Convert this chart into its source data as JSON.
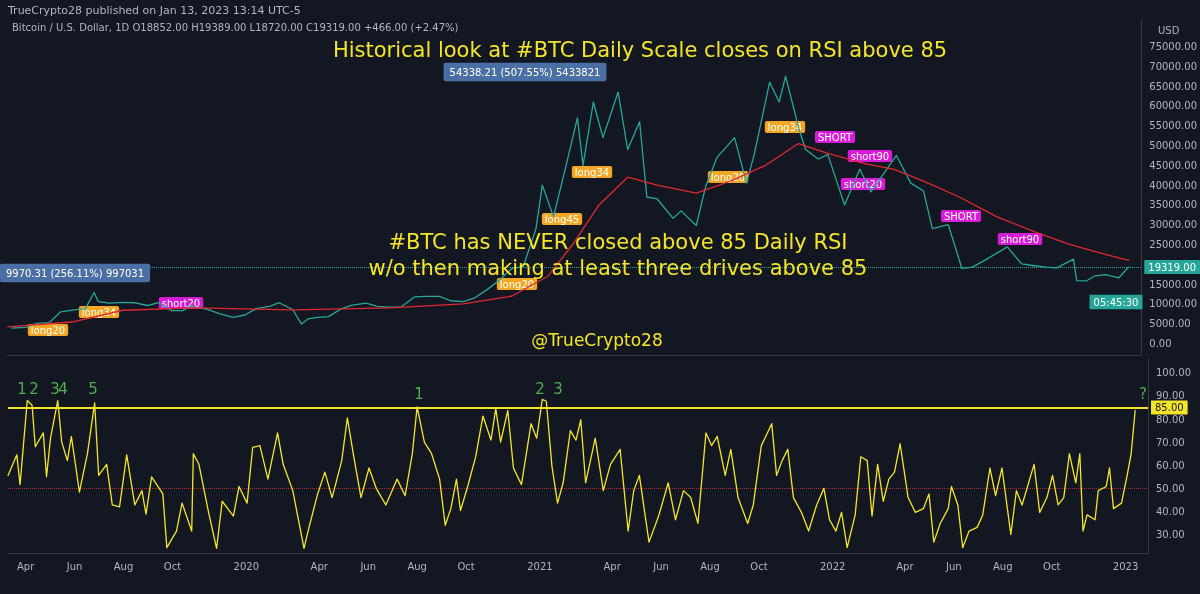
{
  "chart_data": [
    {
      "type": "line",
      "title": "Historical look at #BTC Daily Scale closes on RSI above 85",
      "subtitle": "Bitcoin / U.S. Dollar, 1D O18852.00 H19389.00 L18720.00 C19319.00 +466.00 (+2.47%)",
      "ylabel": "USD",
      "xlim": [
        "2019-03-10",
        "2023-01-29"
      ],
      "ylim": [
        -2900,
        81700
      ],
      "yticks": [
        {
          "value": 0,
          "label": "0.00"
        },
        {
          "value": 5000,
          "label": "5000.00"
        },
        {
          "value": 10000,
          "label": "10000.00"
        },
        {
          "value": 15000,
          "label": "15000.00"
        },
        {
          "value": 25000,
          "label": "25000.00"
        },
        {
          "value": 30000,
          "label": "30000.00"
        },
        {
          "value": 35000,
          "label": "35000.00"
        },
        {
          "value": 40000,
          "label": "40000.00"
        },
        {
          "value": 45000,
          "label": "45000.00"
        },
        {
          "value": 50000,
          "label": "50000.00"
        },
        {
          "value": 55000,
          "label": "55000.00"
        },
        {
          "value": 60000,
          "label": "60000.00"
        },
        {
          "value": 65000,
          "label": "65000.00"
        },
        {
          "value": 70000,
          "label": "70000.00"
        },
        {
          "value": 75000,
          "label": "75000.00"
        }
      ],
      "tick_labels": "y",
      "series": [
        {
          "color": "#26a69a",
          "x": [
            "2019-03-15",
            "2019-04-01",
            "2019-04-15",
            "2019-05-01",
            "2019-05-15",
            "2019-06-01",
            "2019-06-15",
            "2019-06-26",
            "2019-07-01",
            "2019-07-15",
            "2019-08-01",
            "2019-08-15",
            "2019-09-01",
            "2019-09-15",
            "2019-10-01",
            "2019-10-15",
            "2019-10-26",
            "2019-11-01",
            "2019-11-15",
            "2019-12-01",
            "2019-12-17",
            "2020-01-01",
            "2020-01-15",
            "2020-02-01",
            "2020-02-13",
            "2020-03-01",
            "2020-03-12",
            "2020-03-20",
            "2020-04-01",
            "2020-04-15",
            "2020-05-01",
            "2020-05-15",
            "2020-06-01",
            "2020-06-15",
            "2020-07-01",
            "2020-07-15",
            "2020-08-01",
            "2020-08-15",
            "2020-09-01",
            "2020-09-15",
            "2020-10-01",
            "2020-10-15",
            "2020-11-01",
            "2020-11-15",
            "2020-12-01",
            "2020-12-15",
            "2020-12-31",
            "2021-01-08",
            "2021-01-22",
            "2021-02-08",
            "2021-02-21",
            "2021-02-28",
            "2021-03-13",
            "2021-03-25",
            "2021-04-13",
            "2021-04-25",
            "2021-05-10",
            "2021-05-19",
            "2021-06-01",
            "2021-06-21",
            "2021-07-01",
            "2021-07-20",
            "2021-08-01",
            "2021-08-15",
            "2021-09-06",
            "2021-09-21",
            "2021-10-01",
            "2021-10-20",
            "2021-11-01",
            "2021-11-09",
            "2021-11-26",
            "2021-12-04",
            "2021-12-20",
            "2022-01-01",
            "2022-01-22",
            "2022-02-10",
            "2022-02-24",
            "2022-03-28",
            "2022-04-15",
            "2022-05-01",
            "2022-05-12",
            "2022-06-01",
            "2022-06-18",
            "2022-07-01",
            "2022-07-15",
            "2022-08-14",
            "2022-09-01",
            "2022-09-15",
            "2022-10-01",
            "2022-10-15",
            "2022-11-05",
            "2022-11-09",
            "2022-11-21",
            "2022-12-01",
            "2022-12-15",
            "2023-01-01",
            "2023-01-13"
          ],
          "values": [
            3900,
            4100,
            5100,
            5300,
            8000,
            8500,
            8800,
            12900,
            10600,
            10200,
            10400,
            10300,
            9600,
            10300,
            8300,
            8300,
            9500,
            9200,
            8600,
            7500,
            6600,
            7200,
            8800,
            9400,
            10300,
            8600,
            4900,
            6200,
            6600,
            6800,
            8800,
            9700,
            10200,
            9400,
            9200,
            9200,
            11800,
            11900,
            11900,
            10800,
            10600,
            11500,
            13800,
            16000,
            19000,
            19400,
            29000,
            40000,
            32000,
            46000,
            57000,
            45000,
            61000,
            52000,
            63500,
            49000,
            56000,
            37000,
            36500,
            31600,
            33500,
            29800,
            39800,
            47000,
            52000,
            40500,
            48000,
            66000,
            61000,
            67500,
            54000,
            49000,
            46600,
            47700,
            35000,
            44000,
            38300,
            47500,
            40500,
            38500,
            29000,
            30000,
            19000,
            19300,
            20800,
            24400,
            20100,
            19700,
            19300,
            19100,
            21300,
            15900,
            15800,
            17000,
            17400,
            16600,
            19319
          ]
        },
        {
          "color": "#e0282e",
          "x": [
            "2019-03-10",
            "2019-06-01",
            "2019-08-01",
            "2019-11-01",
            "2020-03-01",
            "2020-07-01",
            "2020-10-01",
            "2020-12-01",
            "2021-01-15",
            "2021-02-15",
            "2021-03-20",
            "2021-04-25",
            "2021-06-01",
            "2021-07-20",
            "2021-09-01",
            "2021-10-15",
            "2021-11-25",
            "2022-01-01",
            "2022-02-15",
            "2022-03-25",
            "2022-05-01",
            "2022-06-15",
            "2022-08-01",
            "2022-09-20",
            "2022-11-01",
            "2022-12-15",
            "2023-01-13"
          ],
          "values": [
            4200,
            5500,
            8400,
            9000,
            8500,
            9000,
            10000,
            12000,
            17000,
            25000,
            35000,
            42000,
            40000,
            38000,
            41000,
            45000,
            50500,
            48000,
            45500,
            44000,
            41000,
            37000,
            32000,
            28000,
            25000,
            22500,
            21000
          ]
        }
      ],
      "ref_lines": [
        {
          "axis": "y",
          "value": 19319,
          "label": "19319.00",
          "color": "#26a69a",
          "line_style": "dotted"
        }
      ],
      "annotations": [
        "TrueCrypto28 published on Jan 13, 2023 13:14 UTC-5",
        "54338.21 (507.55%) 5433821",
        "9970.31 (256.11%) 997031",
        "#BTC has NEVER closed above 85 Daily RSI\nw/o then making at least three drives above 85",
        "@TrueCrypto28",
        "05:45:30",
        "long20",
        "long34",
        "short20",
        "long20",
        "long45",
        "long34",
        "long20",
        "long34",
        "SHORT",
        "short90",
        "short20",
        "SHORT",
        "short90"
      ]
    },
    {
      "type": "line",
      "xlim": [
        "2019-03-10",
        "2023-01-29"
      ],
      "ylim": [
        22,
        106
      ],
      "xticks": [
        {
          "value": "2019-04-01",
          "label": "Apr"
        },
        {
          "value": "2019-06-01",
          "label": "Jun"
        },
        {
          "value": "2019-08-01",
          "label": "Aug"
        },
        {
          "value": "2019-10-01",
          "label": "Oct"
        },
        {
          "value": "2020-01-01",
          "label": "2020"
        },
        {
          "value": "2020-04-01",
          "label": "Apr"
        },
        {
          "value": "2020-06-01",
          "label": "Jun"
        },
        {
          "value": "2020-08-01",
          "label": "Aug"
        },
        {
          "value": "2020-10-01",
          "label": "Oct"
        },
        {
          "value": "2021-01-01",
          "label": "2021"
        },
        {
          "value": "2021-04-01",
          "label": "Apr"
        },
        {
          "value": "2021-06-01",
          "label": "Jun"
        },
        {
          "value": "2021-08-01",
          "label": "Aug"
        },
        {
          "value": "2021-10-01",
          "label": "Oct"
        },
        {
          "value": "2022-01-01",
          "label": "2022"
        },
        {
          "value": "2022-04-01",
          "label": "Apr"
        },
        {
          "value": "2022-06-01",
          "label": "Jun"
        },
        {
          "value": "2022-08-01",
          "label": "Aug"
        },
        {
          "value": "2022-10-01",
          "label": "Oct"
        },
        {
          "value": "2023-01-01",
          "label": "2023"
        }
      ],
      "yticks": [
        {
          "value": 30,
          "label": "30.00"
        },
        {
          "value": 40,
          "label": "40.00"
        },
        {
          "value": 50,
          "label": "50.00"
        },
        {
          "value": 60,
          "label": "60.00"
        },
        {
          "value": 70,
          "label": "70.00"
        },
        {
          "value": 80,
          "label": "80.00"
        },
        {
          "value": 90,
          "label": "90.00"
        },
        {
          "value": 100,
          "label": "100.00"
        }
      ],
      "series": [
        {
          "color": "#f5e52a",
          "x": [
            "2019-03-10",
            "2019-03-21",
            "2019-03-25",
            "2019-04-03",
            "2019-04-09",
            "2019-04-13",
            "2019-04-23",
            "2019-04-27",
            "2019-05-02",
            "2019-05-11",
            "2019-05-16",
            "2019-05-23",
            "2019-05-28",
            "2019-06-07",
            "2019-06-17",
            "2019-06-26",
            "2019-07-01",
            "2019-07-11",
            "2019-07-18",
            "2019-07-27",
            "2019-08-05",
            "2019-08-15",
            "2019-08-24",
            "2019-08-29",
            "2019-09-05",
            "2019-09-19",
            "2019-09-24",
            "2019-10-06",
            "2019-10-13",
            "2019-10-25",
            "2019-10-27",
            "2019-11-03",
            "2019-11-15",
            "2019-11-25",
            "2019-12-02",
            "2019-12-16",
            "2019-12-23",
            "2020-01-02",
            "2020-01-09",
            "2020-01-18",
            "2020-01-28",
            "2020-02-09",
            "2020-02-16",
            "2020-02-28",
            "2020-03-06",
            "2020-03-13",
            "2020-03-18",
            "2020-03-30",
            "2020-04-08",
            "2020-04-17",
            "2020-04-29",
            "2020-05-06",
            "2020-05-14",
            "2020-05-23",
            "2020-06-02",
            "2020-06-11",
            "2020-06-23",
            "2020-07-07",
            "2020-07-17",
            "2020-07-26",
            "2020-08-01",
            "2020-08-10",
            "2020-08-19",
            "2020-08-29",
            "2020-09-05",
            "2020-09-12",
            "2020-09-19",
            "2020-09-24",
            "2020-10-03",
            "2020-10-13",
            "2020-10-22",
            "2020-11-01",
            "2020-11-07",
            "2020-11-13",
            "2020-11-22",
            "2020-11-29",
            "2020-12-09",
            "2020-12-21",
            "2020-12-28",
            "2021-01-04",
            "2021-01-09",
            "2021-01-16",
            "2021-01-23",
            "2021-01-30",
            "2021-02-08",
            "2021-02-15",
            "2021-02-21",
            "2021-02-27",
            "2021-03-09",
            "2021-03-11",
            "2021-03-21",
            "2021-03-30",
            "2021-04-11",
            "2021-04-21",
            "2021-04-28",
            "2021-05-05",
            "2021-05-17",
            "2021-05-29",
            "2021-06-10",
            "2021-06-19",
            "2021-06-29",
            "2021-07-08",
            "2021-07-17",
            "2021-07-27",
            "2021-08-03",
            "2021-08-10",
            "2021-08-20",
            "2021-08-27",
            "2021-09-05",
            "2021-09-17",
            "2021-09-24",
            "2021-10-04",
            "2021-10-17",
            "2021-10-23",
            "2021-10-30",
            "2021-11-06",
            "2021-11-13",
            "2021-11-23",
            "2021-12-02",
            "2021-12-12",
            "2021-12-21",
            "2021-12-28",
            "2022-01-05",
            "2022-01-12",
            "2022-01-19",
            "2022-01-29",
            "2022-02-05",
            "2022-02-13",
            "2022-02-19",
            "2022-02-26",
            "2022-03-05",
            "2022-03-12",
            "2022-03-19",
            "2022-03-26",
            "2022-04-05",
            "2022-04-14",
            "2022-04-24",
            "2022-05-01",
            "2022-05-07",
            "2022-05-15",
            "2022-05-25",
            "2022-05-29",
            "2022-06-06",
            "2022-06-12",
            "2022-06-20",
            "2022-06-30",
            "2022-07-07",
            "2022-07-16",
            "2022-07-23",
            "2022-07-31",
            "2022-08-11",
            "2022-08-18",
            "2022-08-25",
            "2022-09-09",
            "2022-09-16",
            "2022-09-25",
            "2022-10-02",
            "2022-10-09",
            "2022-10-16",
            "2022-10-23",
            "2022-10-31",
            "2022-11-05",
            "2022-11-09",
            "2022-11-14",
            "2022-11-24",
            "2022-11-28",
            "2022-12-08",
            "2022-12-12",
            "2022-12-17",
            "2022-12-27",
            "2023-01-03",
            "2023-01-08",
            "2023-01-13"
          ],
          "values": [
            55.6,
            64.5,
            51.6,
            88,
            86,
            68,
            74,
            55,
            71.7,
            88,
            70,
            62,
            72.5,
            48.4,
            65,
            87,
            55.6,
            60.4,
            42.8,
            42,
            64.5,
            42.8,
            49,
            38.8,
            55,
            47.6,
            24.3,
            31.5,
            43.6,
            31.5,
            65,
            60.4,
            39.6,
            24,
            44.4,
            38,
            50.8,
            43.6,
            67.7,
            68.5,
            54,
            74,
            60.4,
            49,
            36.4,
            24,
            31.5,
            47.6,
            57,
            46,
            62,
            80.5,
            63.7,
            46,
            58.8,
            50,
            42.8,
            54,
            46.8,
            65,
            85.3,
            70,
            65,
            54,
            34,
            41.2,
            54,
            40.4,
            50.8,
            63.7,
            81.3,
            70.9,
            84.5,
            70,
            83.7,
            58.8,
            51.6,
            78,
            71.7,
            88.5,
            87.7,
            59.6,
            43.6,
            52.4,
            75,
            70.9,
            79.7,
            52.4,
            68.5,
            71.7,
            49,
            60.4,
            66.9,
            31.5,
            49,
            55.6,
            26.7,
            38,
            52.4,
            36.4,
            49,
            46,
            34.8,
            74,
            68.5,
            72.5,
            55.6,
            66.9,
            46,
            34.8,
            42.8,
            68.5,
            78,
            55.6,
            62,
            66.9,
            46,
            39.6,
            31.5,
            42.8,
            50,
            36.4,
            31.5,
            39.6,
            24.3,
            38.5,
            63.7,
            62,
            38,
            60.4,
            44.4,
            54,
            57,
            69.3,
            46,
            39.6,
            41.2,
            47.6,
            26.7,
            34.8,
            41.2,
            50.8,
            42.8,
            24.3,
            31.5,
            33.1,
            38.5,
            58.8,
            46.8,
            58.8,
            30,
            49,
            42.8,
            60.4,
            39.6,
            46,
            55.6,
            42.8,
            46,
            65,
            52.4,
            65,
            31.5,
            38.5,
            36.4,
            49,
            50.8,
            58.8,
            41.2,
            43.6,
            55.6,
            65,
            83.7
          ]
        }
      ],
      "ref_lines": [
        {
          "axis": "y",
          "value": 85,
          "label": "85.00",
          "color": "#f5e52a",
          "line_style": "solid"
        },
        {
          "axis": "y",
          "value": 50,
          "color": "#b22833",
          "line_style": "dotted"
        }
      ],
      "annotations": [
        "1",
        "2",
        "3",
        "4",
        "5",
        "1",
        "2",
        "3",
        "?"
      ]
    }
  ]
}
